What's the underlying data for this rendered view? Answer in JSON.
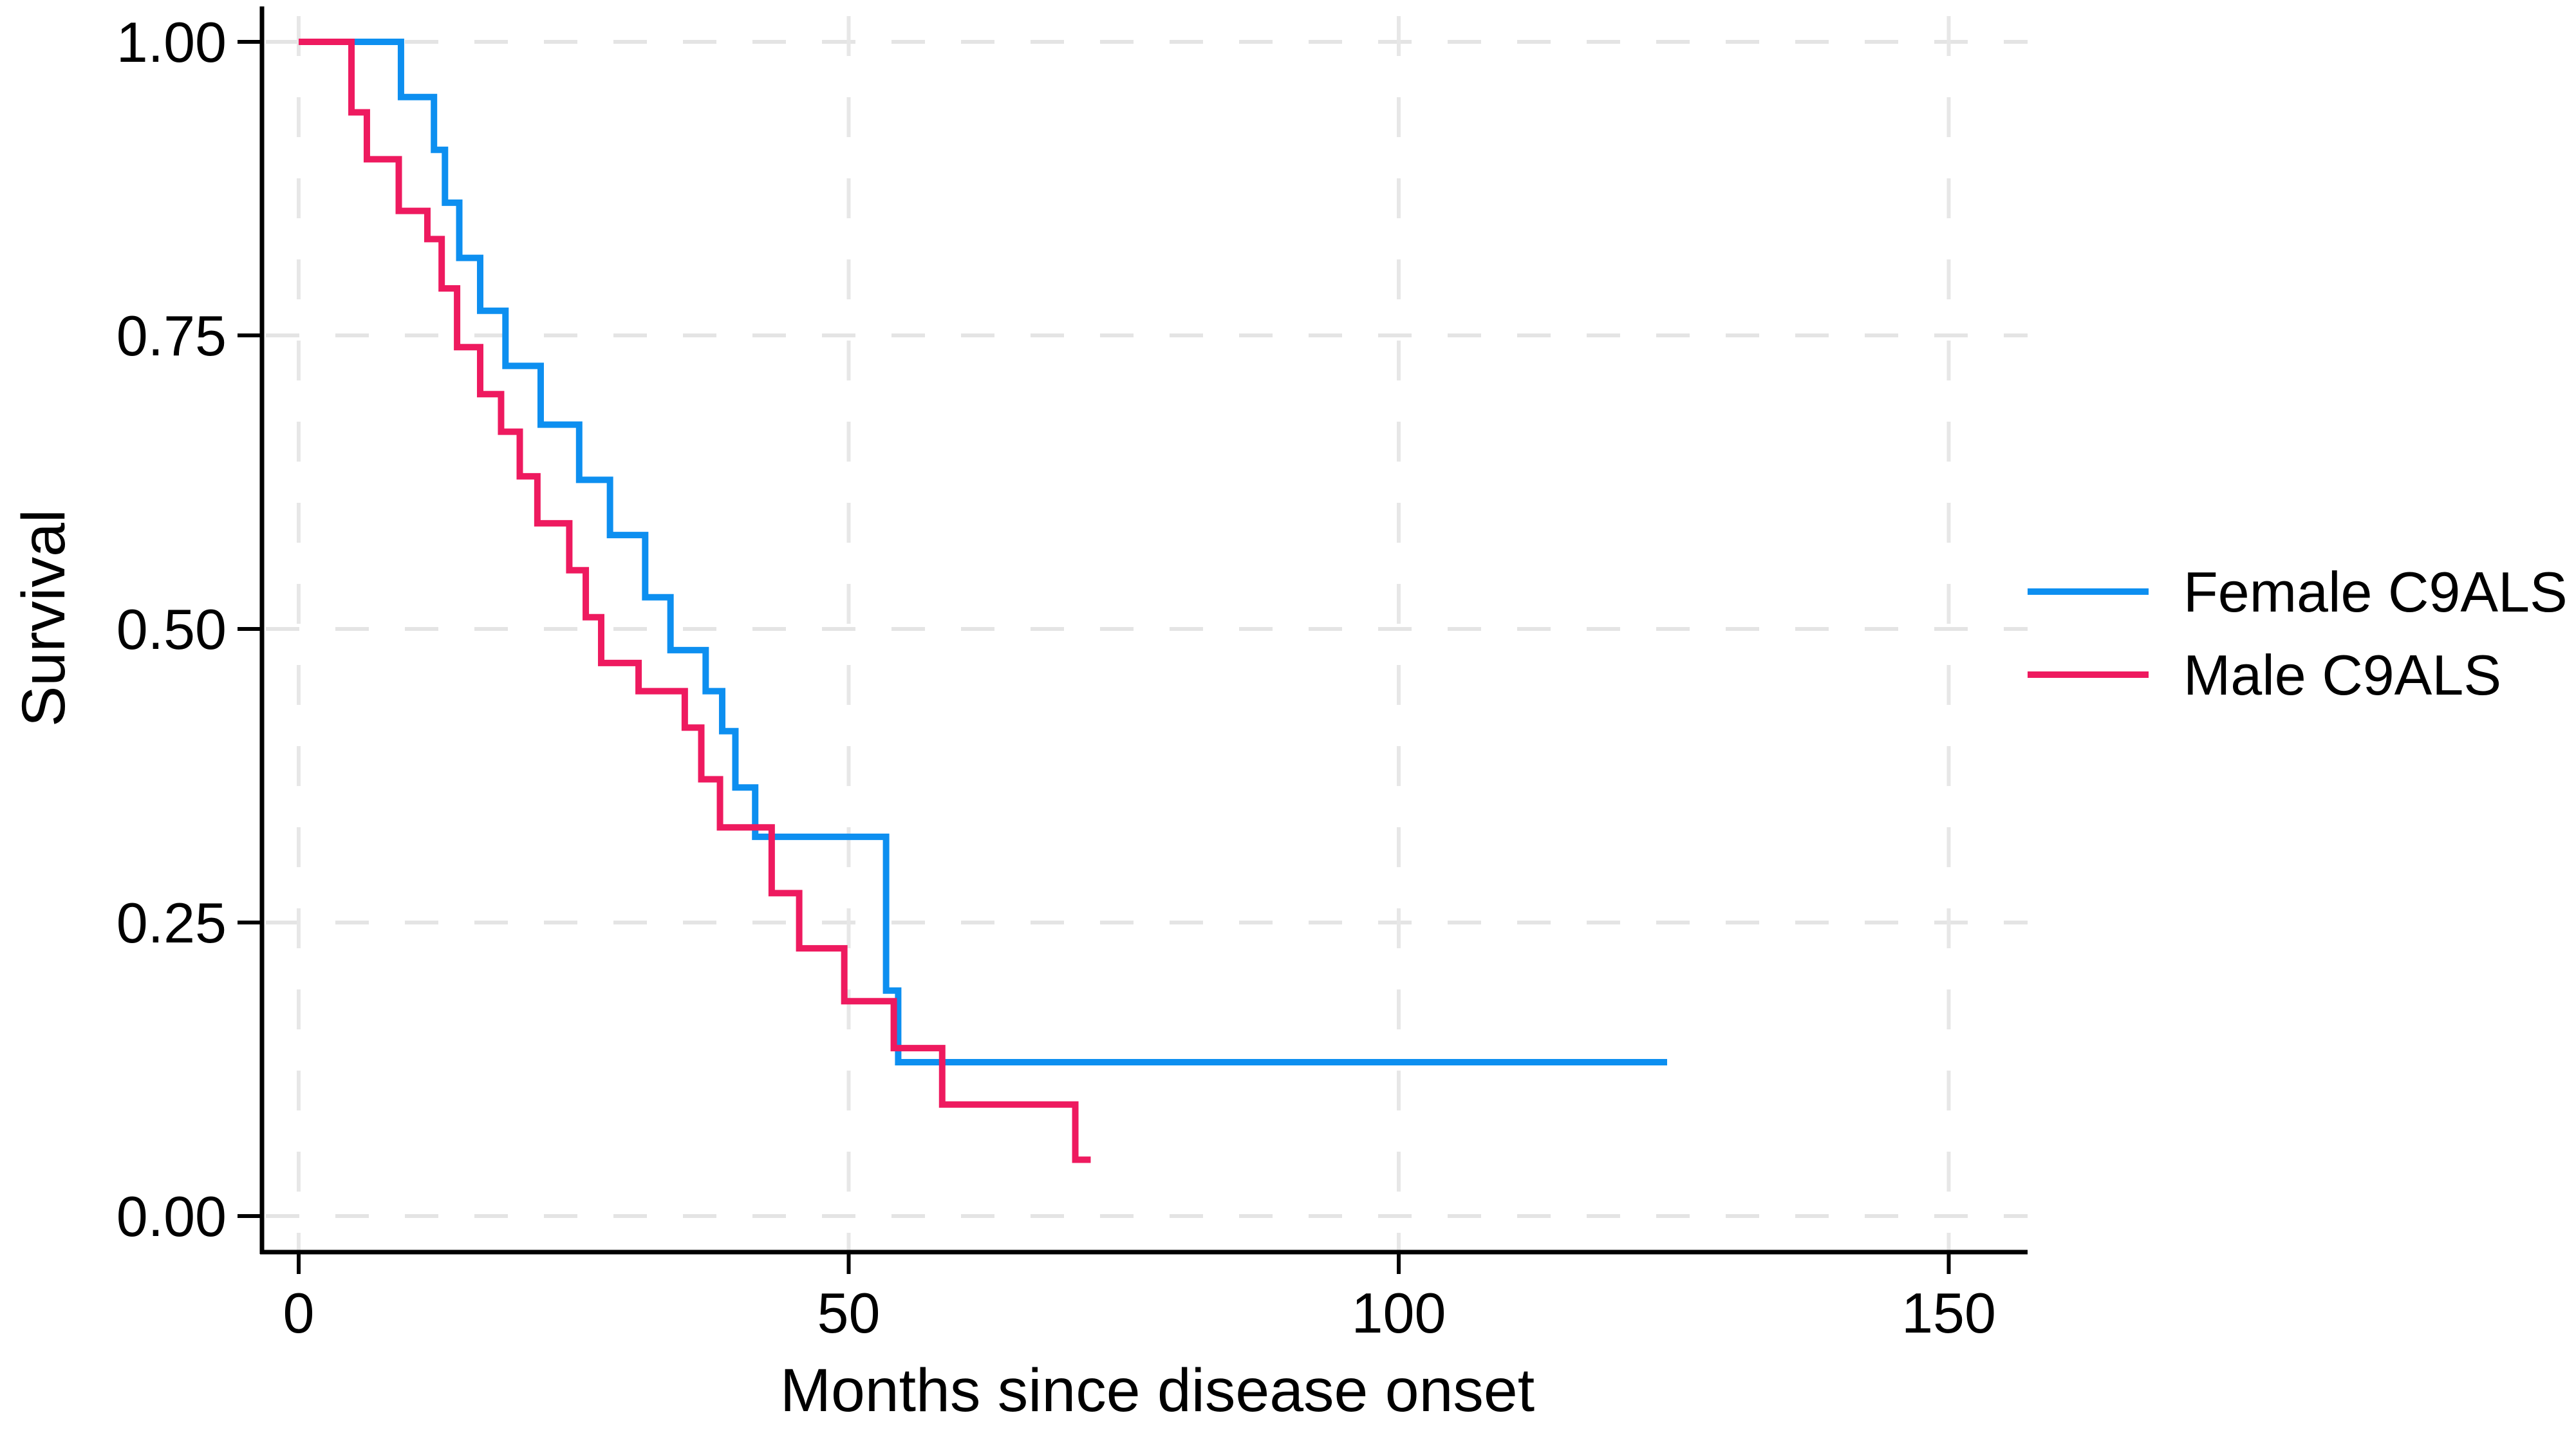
{
  "chart_data": {
    "type": "line",
    "chart_kind": "kaplan-meier-survival-step",
    "xlabel": "Months since disease onset",
    "ylabel": "Survival",
    "xlim": [
      0,
      157
    ],
    "ylim": [
      0,
      1
    ],
    "xticks": [
      {
        "value": 0,
        "label": "0"
      },
      {
        "value": 50,
        "label": "50"
      },
      {
        "value": 100,
        "label": "100"
      },
      {
        "value": 150,
        "label": "150"
      }
    ],
    "yticks": [
      {
        "value": 0.0,
        "label": "0.00"
      },
      {
        "value": 0.25,
        "label": "0.25"
      },
      {
        "value": 0.5,
        "label": "0.50"
      },
      {
        "value": 0.75,
        "label": "0.75"
      },
      {
        "value": 1.0,
        "label": "1.00"
      }
    ],
    "grid": "dashed-both-axes",
    "legend_position": "right-outside-middle",
    "series": [
      {
        "name": "Female C9ALS",
        "color": "#0d8ff0",
        "start_survival": 1.0,
        "end_month": 124.4,
        "censored_tail": true,
        "steps": [
          [
            9.3,
            0.953
          ],
          [
            12.3,
            0.908
          ],
          [
            13.3,
            0.863
          ],
          [
            14.6,
            0.816
          ],
          [
            16.5,
            0.771
          ],
          [
            18.8,
            0.724
          ],
          [
            22.0,
            0.674
          ],
          [
            25.5,
            0.627
          ],
          [
            28.3,
            0.58
          ],
          [
            31.5,
            0.527
          ],
          [
            33.8,
            0.482
          ],
          [
            37.0,
            0.447
          ],
          [
            38.5,
            0.413
          ],
          [
            39.7,
            0.365
          ],
          [
            41.5,
            0.323
          ],
          [
            53.4,
            0.192
          ],
          [
            54.5,
            0.131
          ]
        ]
      },
      {
        "name": "Male C9ALS",
        "color": "#ee1a5f",
        "start_survival": 1.0,
        "end_month": 72.0,
        "censored_tail": true,
        "steps": [
          [
            4.8,
            0.94
          ],
          [
            6.2,
            0.9
          ],
          [
            9.1,
            0.856
          ],
          [
            11.7,
            0.832
          ],
          [
            13.0,
            0.79
          ],
          [
            14.4,
            0.74
          ],
          [
            16.5,
            0.7
          ],
          [
            18.4,
            0.668
          ],
          [
            20.1,
            0.63
          ],
          [
            21.7,
            0.59
          ],
          [
            24.6,
            0.55
          ],
          [
            26.1,
            0.51
          ],
          [
            27.5,
            0.471
          ],
          [
            30.9,
            0.447
          ],
          [
            35.1,
            0.416
          ],
          [
            36.6,
            0.372
          ],
          [
            38.3,
            0.331
          ],
          [
            43.0,
            0.275
          ],
          [
            45.5,
            0.228
          ],
          [
            49.6,
            0.183
          ],
          [
            54.1,
            0.143
          ],
          [
            58.5,
            0.095
          ],
          [
            70.6,
            0.048
          ]
        ]
      }
    ]
  }
}
